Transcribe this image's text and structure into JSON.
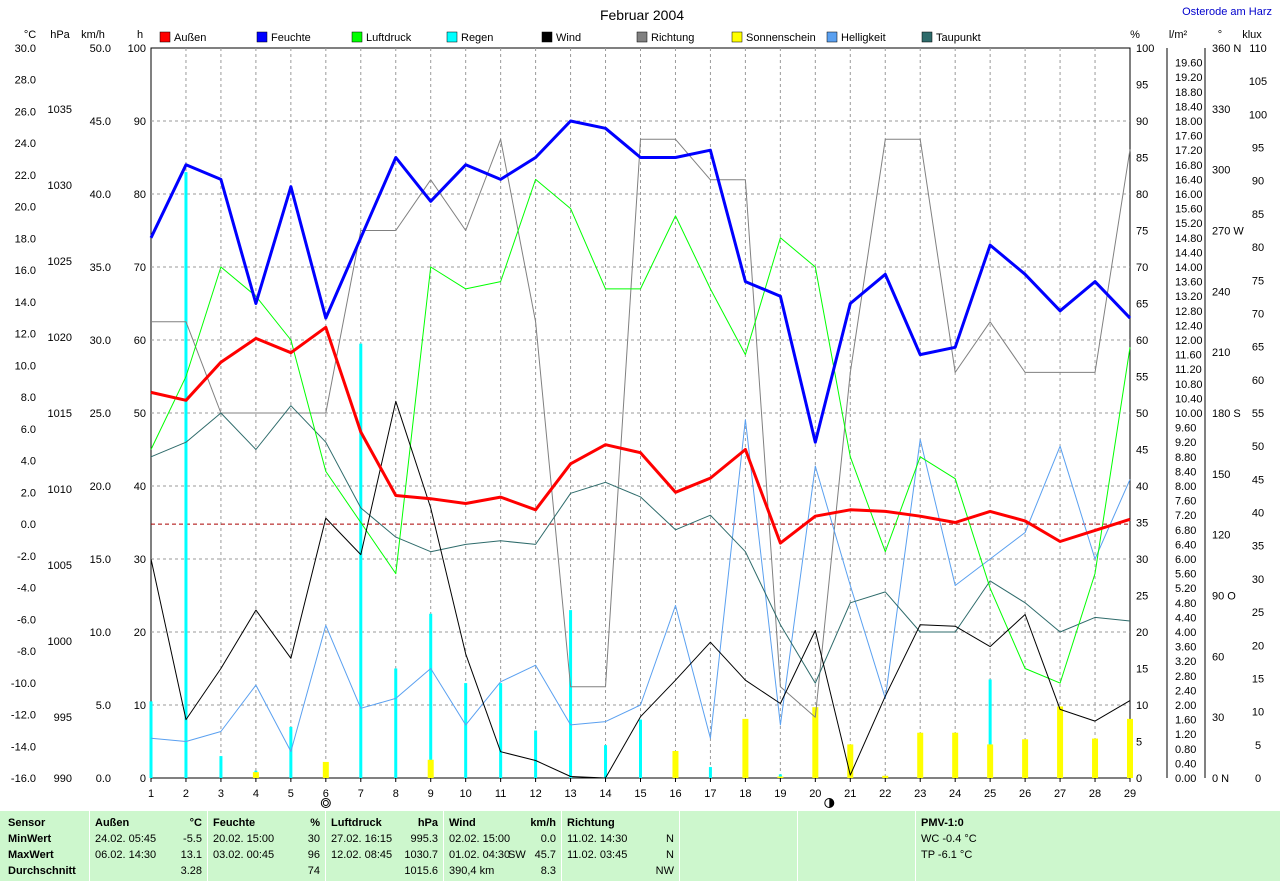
{
  "title": "Februar 2004",
  "location": "Osterode am Harz",
  "units": {
    "temp": "°C",
    "pressure": "hPa",
    "wind": "km/h",
    "hours": "h",
    "percent": "%",
    "rain": "l/m²",
    "degree": "°",
    "klux": "klux"
  },
  "colors": {
    "aussen": "#ff0000",
    "feuchte": "#0000ff",
    "luftdruck": "#00ff00",
    "regen": "#00ffff",
    "wind": "#000000",
    "richtung": "#808080",
    "sonne": "#ffff00",
    "helligkeit": "#5aa0f0",
    "taupunkt": "#2e6b6b",
    "stats_bg": "#cdf7cd"
  },
  "chart_data": {
    "type": "line",
    "title": "Februar 2004",
    "x": [
      1,
      2,
      3,
      4,
      5,
      6,
      7,
      8,
      9,
      10,
      11,
      12,
      13,
      14,
      15,
      16,
      17,
      18,
      19,
      20,
      21,
      22,
      23,
      24,
      25,
      26,
      27,
      28,
      29
    ],
    "grid": true,
    "legend_position": "top",
    "axes": {
      "temp": {
        "label": "°C",
        "range": [
          -16,
          30
        ],
        "ticks": [
          "30.0",
          "28.0",
          "26.0",
          "24.0",
          "22.0",
          "20.0",
          "18.0",
          "16.0",
          "14.0",
          "12.0",
          "10.0",
          "8.0",
          "6.0",
          "4.0",
          "2.0",
          "0.0",
          "-2.0",
          "-4.0",
          "-6.0",
          "-8.0",
          "-10.0",
          "-12.0",
          "-14.0",
          "-16.0"
        ]
      },
      "pressure": {
        "label": "hPa",
        "ticks": [
          "1035",
          "1030",
          "1025",
          "1020",
          "1015",
          "1010",
          "1005",
          "1000",
          "995",
          "990"
        ]
      },
      "wind": {
        "label": "km/h",
        "range": [
          0,
          50
        ],
        "ticks": [
          "50.0",
          "45.0",
          "40.0",
          "35.0",
          "30.0",
          "25.0",
          "20.0",
          "15.0",
          "10.0",
          "5.0",
          "0.0"
        ]
      },
      "hours": {
        "label": "h",
        "range": [
          0,
          100
        ],
        "ticks": [
          "100",
          "90",
          "80",
          "70",
          "60",
          "50",
          "40",
          "30",
          "20",
          "10",
          "0"
        ]
      },
      "percent": {
        "label": "%",
        "range": [
          0,
          100
        ],
        "ticks": [
          "100",
          "95",
          "90",
          "85",
          "80",
          "75",
          "70",
          "65",
          "60",
          "55",
          "50",
          "45",
          "40",
          "35",
          "30",
          "25",
          "20",
          "15",
          "10",
          "5",
          "0"
        ]
      },
      "rain": {
        "label": "l/m²",
        "range": [
          0,
          20
        ],
        "ticks": [
          "19.60",
          "19.20",
          "18.80",
          "18.40",
          "18.00",
          "17.60",
          "17.20",
          "16.80",
          "16.40",
          "16.00",
          "15.60",
          "15.20",
          "14.80",
          "14.40",
          "14.00",
          "13.60",
          "13.20",
          "12.80",
          "12.40",
          "12.00",
          "11.60",
          "11.20",
          "10.80",
          "10.40",
          "10.00",
          "9.60",
          "9.20",
          "8.80",
          "8.40",
          "8.00",
          "7.60",
          "7.20",
          "6.80",
          "6.40",
          "6.00",
          "5.60",
          "5.20",
          "4.80",
          "4.40",
          "4.00",
          "3.60",
          "3.20",
          "2.80",
          "2.40",
          "2.00",
          "1.60",
          "1.20",
          "0.80",
          "0.40",
          "0.00"
        ]
      },
      "direction": {
        "label": "°",
        "range": [
          0,
          360
        ],
        "ticks": [
          "360 N",
          "330",
          "300",
          "270 W",
          "240",
          "210",
          "180 S",
          "150",
          "120",
          "90 O",
          "60",
          "30",
          "0 N"
        ]
      },
      "klux": {
        "label": "klux",
        "range": [
          0,
          110
        ],
        "ticks": [
          "110",
          "105",
          "100",
          "95",
          "90",
          "85",
          "80",
          "75",
          "70",
          "65",
          "60",
          "55",
          "50",
          "45",
          "40",
          "35",
          "30",
          "25",
          "20",
          "15",
          "10",
          "5",
          "0"
        ]
      }
    },
    "series": [
      {
        "name": "Außen",
        "key": "aussen",
        "axis": "temp",
        "kind": "line",
        "values": [
          8.3,
          7.8,
          10.2,
          11.7,
          10.8,
          12.4,
          5.8,
          1.8,
          1.6,
          1.3,
          1.7,
          0.9,
          3.8,
          5.0,
          4.5,
          2.0,
          2.9,
          4.7,
          -1.2,
          0.5,
          0.9,
          0.8,
          0.5,
          0.1,
          0.8,
          0.2,
          -1.1,
          -0.4,
          0.3
        ]
      },
      {
        "name": "Feuchte",
        "key": "feuchte",
        "axis": "percent",
        "kind": "line",
        "values": [
          74,
          84,
          82,
          65,
          81,
          63,
          74,
          85,
          79,
          84,
          82,
          85,
          90,
          89,
          85,
          85,
          86,
          68,
          66,
          46,
          65,
          69,
          58,
          59,
          73,
          69,
          64,
          68,
          63
        ]
      },
      {
        "name": "Luftdruck",
        "key": "luftdruck",
        "axis": "percent",
        "kind": "line",
        "values": [
          45,
          55,
          70,
          66,
          60,
          42,
          35,
          28,
          70,
          67,
          68,
          82,
          78,
          67,
          67,
          77,
          67,
          58,
          74,
          70,
          44,
          31,
          44,
          41,
          26,
          15,
          13,
          28,
          59
        ]
      },
      {
        "name": "Regen",
        "key": "regen",
        "axis": "rain",
        "kind": "bar",
        "values": [
          2.1,
          16.6,
          0.6,
          0.2,
          1.4,
          0.4,
          11.9,
          3.0,
          4.5,
          2.6,
          2.6,
          1.3,
          4.6,
          0.9,
          1.6,
          0.2,
          0.3,
          0.2,
          0.1,
          0.2,
          0.1,
          0.0,
          0.2,
          0.2,
          2.7,
          0.1,
          0.1,
          0.1,
          0.1
        ]
      },
      {
        "name": "Wind",
        "key": "wind",
        "axis": "wind",
        "kind": "line",
        "values": [
          15.0,
          4.0,
          7.5,
          11.5,
          8.2,
          17.8,
          15.3,
          25.8,
          18.5,
          8.5,
          1.8,
          1.2,
          0.1,
          0.0,
          4.2,
          6.7,
          9.3,
          6.7,
          5.1,
          10.1,
          0.2,
          5.6,
          10.5,
          10.4,
          9.0,
          11.2,
          4.7,
          3.9,
          5.3
        ]
      },
      {
        "name": "Richtung",
        "key": "richtung",
        "axis": "direction",
        "kind": "line",
        "values": [
          225,
          225,
          180,
          180,
          180,
          180,
          270,
          270,
          295,
          270,
          315,
          225,
          45,
          45,
          315,
          315,
          295,
          295,
          45,
          30,
          200,
          315,
          315,
          200,
          225,
          200,
          200,
          200,
          310
        ]
      },
      {
        "name": "Sonnenschein",
        "key": "sonne",
        "axis": "hours",
        "kind": "bar",
        "values": [
          0,
          0,
          0,
          0.8,
          0,
          2.2,
          0,
          0,
          2.5,
          0,
          0,
          0,
          0,
          0,
          0,
          3.7,
          0,
          8.1,
          0.2,
          9.7,
          4.6,
          0.3,
          6.2,
          6.2,
          4.6,
          5.3,
          9.8,
          5.4,
          8.1
        ]
      },
      {
        "name": "Helligkeit",
        "key": "helligkeit",
        "axis": "klux",
        "kind": "line",
        "values": [
          6,
          5.5,
          7,
          14,
          4,
          23,
          10.5,
          12,
          16.5,
          8,
          14.5,
          17,
          8,
          8.5,
          11,
          26,
          6,
          54,
          8,
          47,
          29,
          12,
          51,
          29,
          33,
          37,
          50,
          33,
          45
        ]
      },
      {
        "name": "Taupunkt",
        "key": "taupunkt",
        "axis": "percent",
        "kind": "line",
        "values": [
          44,
          46,
          50,
          45,
          51,
          46,
          37,
          33,
          31,
          32,
          32.5,
          32,
          39,
          40.5,
          38.5,
          34,
          36,
          31,
          21,
          13,
          24,
          25.5,
          20,
          20,
          27,
          24,
          20,
          22,
          21.5
        ]
      }
    ]
  },
  "moon_markers": [
    {
      "symbol": "new",
      "position_day": 6.0
    },
    {
      "symbol": "full",
      "position_day": 20.4
    }
  ],
  "stats": {
    "row_labels": [
      "Sensor",
      "MinWert",
      "MaxWert",
      "Durchschnitt"
    ],
    "aussen": {
      "title": "Außen",
      "unit": "°C",
      "min_time": "24.02.  05:45",
      "min": "-5.5",
      "max_time": "06.02.  14:30",
      "max": "13.1",
      "avg": "3.28"
    },
    "feuchte": {
      "title": "Feuchte",
      "unit": "%",
      "min_time": "20.02.  15:00",
      "min": "30",
      "max_time": "03.02.  00:45",
      "max": "96",
      "avg": "74"
    },
    "luftdruck": {
      "title": "Luftdruck",
      "unit": "hPa",
      "min_time": "27.02.  16:15",
      "min": "995.3",
      "max_time": "12.02.  08:45",
      "max": "1030.7",
      "avg": "1015.6"
    },
    "wind": {
      "title": "Wind",
      "unit": "km/h",
      "min_time": "02.02.  15:00",
      "min": "0.0",
      "max_time": "01.02.  04:30",
      "max_dir": "SW",
      "max": "45.7",
      "avg_label": "390,4 km",
      "avg": "8.3"
    },
    "richtung": {
      "title": "Richtung",
      "min_time": "11.02.  14:30",
      "min": "N",
      "max_time": "11.02.  03:45",
      "max": "N",
      "avg": "NW"
    },
    "pmv": {
      "title": "PMV-1:0",
      "wc": "WC -0.4 °C",
      "tp": "TP -6.1 °C"
    }
  }
}
